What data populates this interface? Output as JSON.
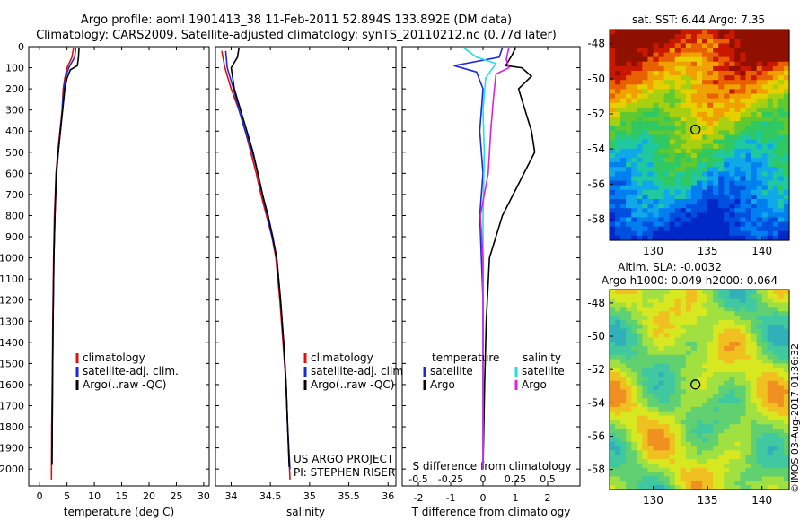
{
  "header": {
    "title_line1": "Argo profile: aoml 1901413_38 11-Feb-2011 52.894S 133.892E (DM data)",
    "title_line2": "Climatology: CARS2009. Satellite-adjusted climatology: synTS_20110212.nc (0.77d later)"
  },
  "colors": {
    "climatology": "#e01010",
    "satellite": "#1a2ad8",
    "argo": "#000000",
    "sal_satellite": "#22e0e0",
    "sal_argo": "#e020e0"
  },
  "chart_data": [
    {
      "type": "line",
      "id": "temperature",
      "xlabel": "temperature (deg C)",
      "ylabel": "",
      "xlim": [
        -2,
        31
      ],
      "ylim": [
        2080,
        0
      ],
      "xticks": [
        "0",
        "5",
        "10",
        "15",
        "20",
        "25",
        "30"
      ],
      "yticks": [
        "0",
        "100",
        "200",
        "300",
        "400",
        "500",
        "600",
        "700",
        "800",
        "900",
        "1000",
        "1100",
        "1200",
        "1300",
        "1400",
        "1500",
        "1600",
        "1700",
        "1800",
        "1900",
        "2000"
      ],
      "legend": [
        "climatology",
        "satellite-adj. clim.",
        "Argo(..raw -QC)"
      ],
      "series": [
        {
          "name": "climatology",
          "points": [
            [
              6.2,
              5
            ],
            [
              5.9,
              50
            ],
            [
              5.0,
              100
            ],
            [
              4.6,
              150
            ],
            [
              4.3,
              200
            ],
            [
              4.1,
              300
            ],
            [
              3.7,
              400
            ],
            [
              3.3,
              500
            ],
            [
              3.0,
              600
            ],
            [
              2.7,
              800
            ],
            [
              2.55,
              1000
            ],
            [
              2.4,
              1300
            ],
            [
              2.3,
              1600
            ],
            [
              2.2,
              1800
            ],
            [
              2.15,
              2050
            ]
          ]
        },
        {
          "name": "satellite-adj. clim.",
          "points": [
            [
              6.6,
              5
            ],
            [
              6.4,
              50
            ],
            [
              5.3,
              100
            ],
            [
              4.7,
              150
            ],
            [
              4.4,
              200
            ],
            [
              4.1,
              300
            ],
            [
              3.8,
              400
            ],
            [
              3.4,
              500
            ],
            [
              3.1,
              600
            ],
            [
              2.8,
              800
            ],
            [
              2.6,
              1000
            ],
            [
              2.45,
              1300
            ],
            [
              2.35,
              1600
            ],
            [
              2.3,
              1800
            ],
            [
              2.25,
              1980
            ]
          ]
        },
        {
          "name": "Argo(..raw -QC)",
          "points": [
            [
              7.2,
              5
            ],
            [
              7.1,
              50
            ],
            [
              6.9,
              90
            ],
            [
              5.6,
              110
            ],
            [
              5.0,
              150
            ],
            [
              4.6,
              200
            ],
            [
              4.2,
              300
            ],
            [
              3.8,
              400
            ],
            [
              3.4,
              500
            ],
            [
              3.0,
              600
            ],
            [
              2.8,
              800
            ],
            [
              2.6,
              1000
            ],
            [
              2.45,
              1300
            ],
            [
              2.35,
              1600
            ],
            [
              2.3,
              1800
            ],
            [
              2.25,
              1980
            ]
          ]
        }
      ]
    },
    {
      "type": "line",
      "id": "salinity",
      "xlabel": "salinity",
      "xlim": [
        33.8,
        36.1
      ],
      "ylim": [
        2080,
        0
      ],
      "xticks": [
        "34",
        "34.5",
        "35",
        "35.5",
        "36"
      ],
      "legend": [
        "climatology",
        "satellite-adj. clim.",
        "Argo(..raw -QC)"
      ],
      "annotations": [
        "US ARGO PROJECT",
        "PI: STEPHEN RISER"
      ],
      "series": [
        {
          "name": "climatology",
          "points": [
            [
              33.88,
              20
            ],
            [
              33.92,
              100
            ],
            [
              34.0,
              200
            ],
            [
              34.1,
              300
            ],
            [
              34.18,
              400
            ],
            [
              34.25,
              500
            ],
            [
              34.32,
              600
            ],
            [
              34.38,
              700
            ],
            [
              34.45,
              800
            ],
            [
              34.52,
              900
            ],
            [
              34.57,
              1000
            ],
            [
              34.62,
              1200
            ],
            [
              34.66,
              1400
            ],
            [
              34.7,
              1600
            ],
            [
              34.72,
              1800
            ],
            [
              34.75,
              2050
            ]
          ]
        },
        {
          "name": "satellite-adj. clim.",
          "points": [
            [
              33.93,
              20
            ],
            [
              33.95,
              100
            ],
            [
              34.03,
              200
            ],
            [
              34.1,
              300
            ],
            [
              34.18,
              400
            ],
            [
              34.27,
              500
            ],
            [
              34.34,
              600
            ],
            [
              34.4,
              700
            ],
            [
              34.46,
              800
            ],
            [
              34.52,
              900
            ],
            [
              34.58,
              1000
            ],
            [
              34.63,
              1200
            ],
            [
              34.67,
              1400
            ],
            [
              34.7,
              1600
            ],
            [
              34.72,
              1800
            ],
            [
              34.75,
              2000
            ]
          ]
        },
        {
          "name": "Argo(..raw -QC)",
          "points": [
            [
              34.1,
              5
            ],
            [
              34.08,
              50
            ],
            [
              34.0,
              100
            ],
            [
              34.04,
              200
            ],
            [
              34.12,
              300
            ],
            [
              34.2,
              400
            ],
            [
              34.28,
              500
            ],
            [
              34.34,
              600
            ],
            [
              34.4,
              700
            ],
            [
              34.47,
              800
            ],
            [
              34.53,
              900
            ],
            [
              34.58,
              1000
            ],
            [
              34.63,
              1200
            ],
            [
              34.67,
              1400
            ],
            [
              34.7,
              1600
            ],
            [
              34.72,
              1800
            ],
            [
              34.74,
              1990
            ]
          ]
        }
      ]
    },
    {
      "type": "line",
      "id": "differences",
      "xlabel": "T difference from climatology",
      "xlabel2": "S difference from climatology",
      "xlim": [
        -2.5,
        3
      ],
      "ylim": [
        2080,
        0
      ],
      "xticks": [
        "-2",
        "-1",
        "0",
        "1",
        "2"
      ],
      "xticks2": [
        "-0.5",
        "-0.25",
        "0",
        "0.25",
        "0.5"
      ],
      "legend_titles": [
        "temperature",
        "salinity"
      ],
      "legend": [
        "satellite",
        "Argo",
        "satellite",
        "Argo"
      ],
      "series": [
        {
          "name": "T satellite",
          "points": [
            [
              0.6,
              5
            ],
            [
              0.5,
              50
            ],
            [
              -0.9,
              90
            ],
            [
              -0.2,
              120
            ],
            [
              0.0,
              200
            ],
            [
              -0.1,
              400
            ],
            [
              0.0,
              600
            ],
            [
              -0.1,
              800
            ],
            [
              0.0,
              1200
            ],
            [
              0.0,
              1600
            ],
            [
              0.0,
              2000
            ]
          ]
        },
        {
          "name": "T Argo",
          "points": [
            [
              1.0,
              5
            ],
            [
              0.9,
              40
            ],
            [
              0.7,
              90
            ],
            [
              1.2,
              100
            ],
            [
              1.5,
              140
            ],
            [
              1.1,
              200
            ],
            [
              1.3,
              300
            ],
            [
              1.5,
              400
            ],
            [
              1.6,
              500
            ],
            [
              1.1,
              650
            ],
            [
              0.6,
              800
            ],
            [
              0.2,
              1000
            ],
            [
              0.1,
              1300
            ],
            [
              0.05,
              1600
            ],
            [
              0.0,
              2000
            ]
          ]
        },
        {
          "name": "S satellite",
          "points": [
            [
              -0.15,
              5
            ],
            [
              -0.05,
              50
            ],
            [
              0.1,
              80
            ],
            [
              0.02,
              150
            ],
            [
              0.0,
              300
            ],
            [
              0.01,
              500
            ],
            [
              0.0,
              800
            ],
            [
              0.0,
              1200
            ],
            [
              0.0,
              2000
            ]
          ]
        },
        {
          "name": "S Argo",
          "points": [
            [
              0.2,
              5
            ],
            [
              0.18,
              60
            ],
            [
              0.2,
              100
            ],
            [
              0.1,
              130
            ],
            [
              0.08,
              250
            ],
            [
              0.06,
              400
            ],
            [
              0.04,
              600
            ],
            [
              -0.02,
              800
            ],
            [
              0.0,
              1000
            ],
            [
              0.0,
              1300
            ],
            [
              0.0,
              2000
            ]
          ]
        }
      ]
    },
    {
      "type": "heatmap",
      "id": "sst_map",
      "title": "sat. SST: 6.44  Argo: 7.35",
      "xlim": [
        126,
        142.5
      ],
      "ylim": [
        -59.2,
        -47.2
      ],
      "xticks": [
        "130",
        "135",
        "140"
      ],
      "yticks": [
        "-48",
        "-50",
        "-52",
        "-54",
        "-56",
        "-58"
      ],
      "marker": [
        133.892,
        -52.894
      ]
    },
    {
      "type": "heatmap",
      "id": "sla_map",
      "title_line1": "Altim. SLA: -0.0032",
      "title_line2": "Argo h1000: 0.049  h2000: 0.064",
      "xlim": [
        126,
        142.5
      ],
      "ylim": [
        -59.2,
        -47.2
      ],
      "xticks": [
        "130",
        "135",
        "140"
      ],
      "yticks": [
        "-48",
        "-50",
        "-52",
        "-54",
        "-56",
        "-58"
      ],
      "marker": [
        133.892,
        -52.894
      ]
    }
  ],
  "footer": {
    "credit": "©IMOS 03-Aug-2017 01:36:32"
  }
}
